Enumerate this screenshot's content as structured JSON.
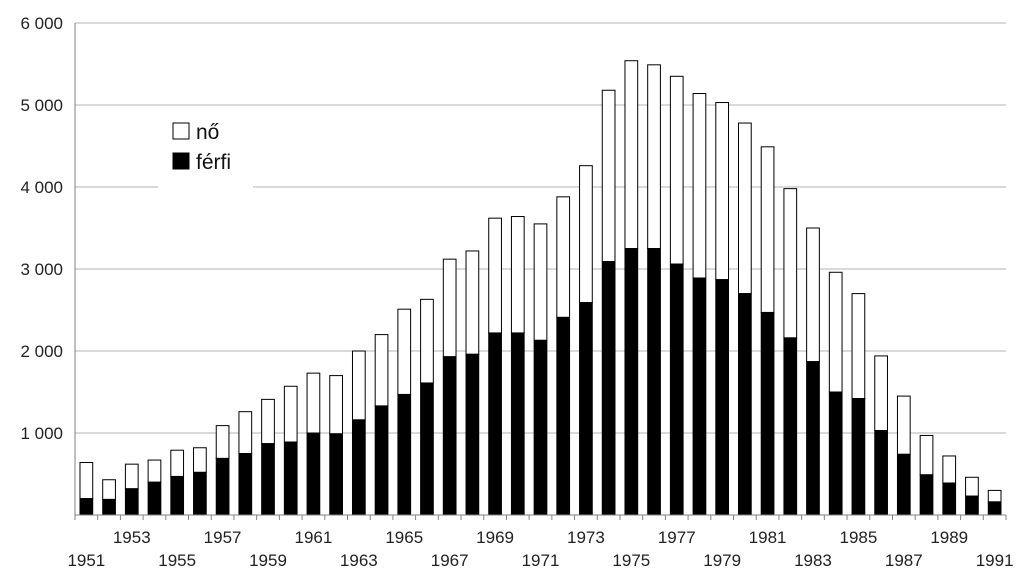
{
  "chart_data": {
    "type": "bar",
    "stacked": true,
    "categories": [
      "1951",
      "1952",
      "1953",
      "1954",
      "1955",
      "1956",
      "1957",
      "1958",
      "1959",
      "1960",
      "1961",
      "1962",
      "1963",
      "1964",
      "1965",
      "1966",
      "1967",
      "1968",
      "1969",
      "1970",
      "1971",
      "1972",
      "1973",
      "1974",
      "1975",
      "1976",
      "1977",
      "1978",
      "1979",
      "1980",
      "1981",
      "1982",
      "1983",
      "1984",
      "1985",
      "1986",
      "1987",
      "1988",
      "1989",
      "1990",
      "1991"
    ],
    "x_tick_labels": [
      "1951",
      "1953",
      "1955",
      "1957",
      "1959",
      "1961",
      "1963",
      "1965",
      "1967",
      "1969",
      "1971",
      "1973",
      "1975",
      "1977",
      "1979",
      "1981",
      "1983",
      "1985",
      "1987",
      "1989",
      "1991"
    ],
    "series": [
      {
        "name": "férfi",
        "color": "#000000",
        "values": [
          200,
          190,
          320,
          400,
          470,
          520,
          690,
          750,
          870,
          890,
          1000,
          990,
          1160,
          1330,
          1470,
          1610,
          1930,
          1960,
          2220,
          2220,
          2130,
          2410,
          2590,
          3090,
          3250,
          3250,
          3060,
          2890,
          2870,
          2700,
          2470,
          2160,
          1870,
          1500,
          1420,
          1030,
          740,
          490,
          390,
          230,
          160
        ]
      },
      {
        "name": "nő",
        "color": "#ffffff",
        "values": [
          440,
          240,
          300,
          270,
          320,
          300,
          400,
          510,
          540,
          680,
          730,
          710,
          840,
          870,
          1040,
          1020,
          1190,
          1260,
          1400,
          1420,
          1420,
          1470,
          1670,
          2090,
          2290,
          2240,
          2290,
          2250,
          2160,
          2080,
          2020,
          1820,
          1630,
          1460,
          1280,
          910,
          710,
          480,
          330,
          230,
          140
        ]
      }
    ],
    "legend": {
      "entries": [
        "nő",
        "férfi"
      ],
      "position": "top-left"
    },
    "ylim": [
      0,
      6000
    ],
    "y_ticks": [
      1000,
      2000,
      3000,
      4000,
      5000,
      6000
    ],
    "y_tick_labels": [
      "1 000",
      "2 000",
      "3 000",
      "4 000",
      "5 000",
      "6 000"
    ],
    "grid": true,
    "colors": {
      "grid": "#b3b3b3",
      "axis": "#808080",
      "bar_outline": "#000000"
    },
    "title": "",
    "xlabel": "",
    "ylabel": ""
  }
}
